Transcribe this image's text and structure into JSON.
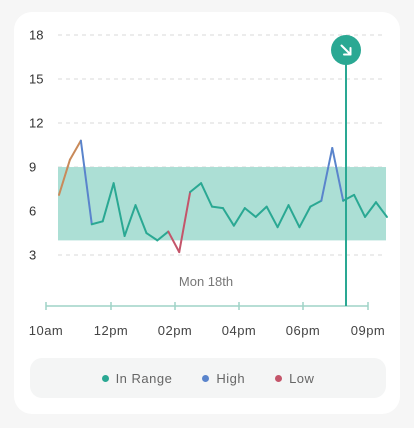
{
  "chart_data": {
    "type": "line",
    "date_label": "Mon 18th",
    "y_ticks": [
      "18",
      "15",
      "12",
      "9",
      "6",
      "3"
    ],
    "ylim": [
      0,
      18
    ],
    "x_ticks": [
      "10am",
      "12pm",
      "02pm",
      "04pm",
      "06pm",
      "09pm"
    ],
    "target_range": [
      4,
      9
    ],
    "grid": true,
    "colors": {
      "in_range": "#2aa893",
      "high": "#c98a5a",
      "high_peak": "#5a84cc",
      "low": "#c4556a",
      "band": "#acdfd5",
      "marker": "#2aa893"
    },
    "series": [
      {
        "values_by_x_index": [
          7.1,
          9.5,
          10.8,
          5.1,
          5.3,
          7.9,
          4.3,
          6.4,
          4.5,
          4.0,
          4.6,
          3.2,
          7.3,
          7.9,
          6.3,
          6.2,
          5.0,
          6.2,
          5.6,
          6.3,
          4.9,
          6.4,
          4.9,
          6.3,
          6.7,
          10.3,
          6.7,
          7.1,
          5.6,
          6.6,
          5.6
        ]
      }
    ],
    "legend": [
      {
        "label": "In Range",
        "color": "#2aa893"
      },
      {
        "label": "High",
        "color": "#5a84cc"
      },
      {
        "label": "Low",
        "color": "#c4556a"
      }
    ],
    "marker_icon": "arrow-down-right-icon"
  }
}
